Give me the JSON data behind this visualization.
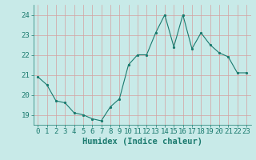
{
  "x": [
    0,
    1,
    2,
    3,
    4,
    5,
    6,
    7,
    8,
    9,
    10,
    11,
    12,
    13,
    14,
    15,
    16,
    17,
    18,
    19,
    20,
    21,
    22,
    23
  ],
  "y": [
    20.9,
    20.5,
    19.7,
    19.6,
    19.1,
    19.0,
    18.8,
    18.7,
    19.4,
    19.8,
    21.5,
    22.0,
    22.0,
    23.1,
    24.0,
    22.4,
    24.0,
    22.3,
    23.1,
    22.5,
    22.1,
    21.9,
    21.1,
    21.1
  ],
  "line_color": "#1a7a6e",
  "marker": ".",
  "marker_size": 3,
  "bg_color": "#c8eae8",
  "grid_color": "#b0d4d0",
  "axis_color": "#1a7a6e",
  "tick_color": "#1a7a6e",
  "xlabel": "Humidex (Indice chaleur)",
  "ylim": [
    18.5,
    24.5
  ],
  "xlim": [
    -0.5,
    23.5
  ],
  "yticks": [
    19,
    20,
    21,
    22,
    23,
    24
  ],
  "xticks": [
    0,
    1,
    2,
    3,
    4,
    5,
    6,
    7,
    8,
    9,
    10,
    11,
    12,
    13,
    14,
    15,
    16,
    17,
    18,
    19,
    20,
    21,
    22,
    23
  ],
  "font_size": 6.5,
  "label_font_size": 7.5
}
